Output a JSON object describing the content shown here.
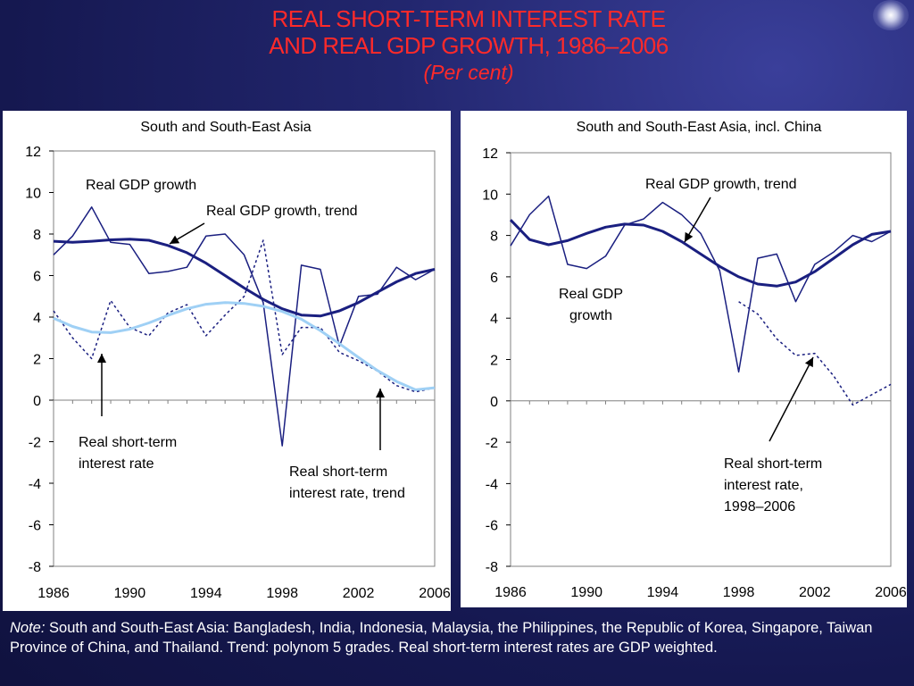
{
  "title": {
    "line1": "REAL SHORT-TERM INTEREST RATE",
    "line2": "AND REAL GDP GROWTH, 1986–2006",
    "subtitle": "(Per cent)"
  },
  "note": {
    "label": "Note:",
    "text": " South and South-East Asia: Bangladesh, India, Indonesia, Malaysia, the Philippines, the Republic of Korea, Singapore, Taiwan Province of China, and Thailand. Trend: polynom 5 grades. Real short-term interest rates are GDP weighted."
  },
  "colors": {
    "gdp": "#1a1f80",
    "trend_dark": "#1a1f80",
    "trend_light": "#9fd0f5",
    "text": "#000000"
  },
  "chart_data": [
    {
      "type": "line",
      "title": "South and South-East Asia",
      "x_ticks": [
        "1986",
        "1990",
        "1994",
        "1998",
        "2002",
        "2006"
      ],
      "ylim": [
        -8,
        12
      ],
      "y_ticks": [
        "12",
        "10",
        "8",
        "6",
        "4",
        "2",
        "0",
        "-2",
        "-4",
        "-6",
        "-8"
      ],
      "xlim": [
        1986,
        2006
      ],
      "series": [
        {
          "name": "Real GDP growth",
          "style": "solid-thin",
          "x": [
            1986,
            1987,
            1988,
            1989,
            1990,
            1991,
            1992,
            1993,
            1994,
            1995,
            1996,
            1997,
            1998,
            1999,
            2000,
            2001,
            2002,
            2003,
            2004,
            2005,
            2006
          ],
          "y": [
            7.0,
            7.9,
            9.3,
            7.6,
            7.5,
            6.1,
            6.2,
            6.4,
            7.9,
            8.0,
            7.0,
            4.7,
            -2.2,
            6.5,
            6.3,
            2.6,
            5.0,
            5.1,
            6.4,
            5.8,
            6.3
          ]
        },
        {
          "name": "Real GDP growth, trend",
          "style": "solid-thick",
          "x": [
            1986,
            1987,
            1988,
            1989,
            1990,
            1991,
            1992,
            1993,
            1994,
            1995,
            1996,
            1997,
            1998,
            1999,
            2000,
            2001,
            2002,
            2003,
            2004,
            2005,
            2006
          ],
          "y": [
            7.65,
            7.6,
            7.65,
            7.72,
            7.75,
            7.7,
            7.45,
            7.1,
            6.6,
            6.0,
            5.4,
            4.85,
            4.4,
            4.1,
            4.05,
            4.3,
            4.7,
            5.2,
            5.7,
            6.1,
            6.3
          ]
        },
        {
          "name": "Real short-term interest rate",
          "style": "dotted",
          "x": [
            1986,
            1987,
            1988,
            1989,
            1990,
            1991,
            1992,
            1993,
            1994,
            1995,
            1996,
            1997,
            1998,
            1999,
            2000,
            2001,
            2002,
            2003,
            2004,
            2005,
            2006
          ],
          "y": [
            4.3,
            3.0,
            2.0,
            4.8,
            3.5,
            3.1,
            4.2,
            4.6,
            3.1,
            4.1,
            5.0,
            7.7,
            2.2,
            3.5,
            3.5,
            2.3,
            1.9,
            1.4,
            0.7,
            0.4,
            0.6
          ]
        },
        {
          "name": "Real short-term interest rate, trend",
          "style": "solid-light",
          "x": [
            1986,
            1987,
            1988,
            1989,
            1990,
            1991,
            1992,
            1993,
            1994,
            1995,
            1996,
            1997,
            1998,
            1999,
            2000,
            2001,
            2002,
            2003,
            2004,
            2005,
            2006
          ],
          "y": [
            3.95,
            3.55,
            3.28,
            3.25,
            3.42,
            3.72,
            4.08,
            4.4,
            4.62,
            4.7,
            4.66,
            4.52,
            4.27,
            3.9,
            3.35,
            2.72,
            2.06,
            1.43,
            0.9,
            0.5,
            0.6
          ]
        }
      ],
      "annotations": [
        {
          "text": "Real GDP growth"
        },
        {
          "text": "Real GDP growth, trend"
        },
        {
          "lines": [
            "Real short-term",
            "interest rate"
          ]
        },
        {
          "lines": [
            "Real short-term",
            "interest rate, trend"
          ]
        }
      ]
    },
    {
      "type": "line",
      "title": "South and South-East Asia, incl. China",
      "x_ticks": [
        "1986",
        "1990",
        "1994",
        "1998",
        "2002",
        "2006"
      ],
      "ylim": [
        -8,
        12
      ],
      "y_ticks": [
        "12",
        "10",
        "8",
        "6",
        "4",
        "2",
        "0",
        "-2",
        "-4",
        "-6",
        "-8"
      ],
      "xlim": [
        1986,
        2006
      ],
      "series": [
        {
          "name": "Real GDP growth",
          "style": "solid-thin",
          "x": [
            1986,
            1987,
            1988,
            1989,
            1990,
            1991,
            1992,
            1993,
            1994,
            1995,
            1996,
            1997,
            1998,
            1999,
            2000,
            2001,
            2002,
            2003,
            2004,
            2005,
            2006
          ],
          "y": [
            7.5,
            9.0,
            9.9,
            6.6,
            6.4,
            7.0,
            8.5,
            8.8,
            9.6,
            9.0,
            8.1,
            6.3,
            1.4,
            6.9,
            7.1,
            4.8,
            6.6,
            7.2,
            8.0,
            7.7,
            8.2
          ]
        },
        {
          "name": "Real GDP growth, trend",
          "style": "solid-thick",
          "x": [
            1986,
            1987,
            1988,
            1989,
            1990,
            1991,
            1992,
            1993,
            1994,
            1995,
            1996,
            1997,
            1998,
            1999,
            2000,
            2001,
            2002,
            2003,
            2004,
            2005,
            2006
          ],
          "y": [
            8.75,
            7.8,
            7.55,
            7.75,
            8.1,
            8.4,
            8.55,
            8.5,
            8.2,
            7.7,
            7.1,
            6.5,
            6.0,
            5.65,
            5.55,
            5.75,
            6.25,
            6.9,
            7.55,
            8.05,
            8.2
          ]
        },
        {
          "name": "Real short-term interest rate, 1998–2006",
          "style": "dotted",
          "x": [
            1998,
            1999,
            2000,
            2001,
            2002,
            2003,
            2004,
            2005,
            2006
          ],
          "y": [
            4.8,
            4.2,
            3.0,
            2.2,
            2.3,
            1.2,
            -0.2,
            0.3,
            0.8
          ]
        }
      ],
      "annotations": [
        {
          "text": "Real GDP growth, trend"
        },
        {
          "lines": [
            "Real GDP",
            "growth"
          ]
        },
        {
          "lines": [
            "Real short-term",
            "interest rate,",
            "1998–2006"
          ]
        }
      ]
    }
  ]
}
